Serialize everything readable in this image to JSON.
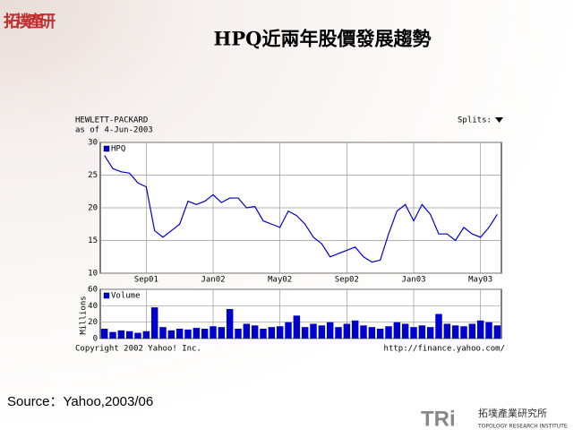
{
  "slide": {
    "title": "HPQ近兩年股價發展趨勢",
    "source": "Source：Yahoo,2003/06",
    "corner_logo": "拓墣產研",
    "brand": "TRi",
    "institute_cn": "拓墣產業研究所",
    "institute_en": "TOPOLOGY RESEARCH INSTITUTE"
  },
  "chart_data": [
    {
      "type": "line",
      "title": "HEWLETT-PACKARD",
      "subtitle": "as of  4-Jun-2003",
      "splits_label": "Splits:",
      "categories": [
        null,
        null,
        null,
        null,
        null,
        "Sep01",
        null,
        null,
        null,
        null,
        null,
        null,
        null,
        "Jan02",
        null,
        null,
        null,
        null,
        null,
        null,
        null,
        "May02",
        null,
        null,
        null,
        null,
        null,
        null,
        null,
        "Sep02",
        null,
        null,
        null,
        null,
        null,
        null,
        null,
        "Jan03",
        null,
        null,
        null,
        null,
        null,
        null,
        null,
        "May03",
        null,
        null
      ],
      "series": [
        {
          "name": "HPQ",
          "color": "#0000cc",
          "values": [
            28,
            26,
            25.5,
            25.3,
            23.8,
            23.2,
            16.5,
            15.5,
            16.5,
            17.5,
            21,
            20.5,
            21,
            22,
            20.8,
            21.5,
            21.5,
            20,
            20.2,
            18,
            17.5,
            17,
            19.5,
            18.8,
            17.5,
            15.5,
            14.5,
            12.5,
            13,
            13.5,
            14,
            12.5,
            11.7,
            12,
            16,
            19.5,
            20.5,
            18,
            20.5,
            19,
            16,
            16,
            15,
            17,
            16,
            15.5,
            17,
            19
          ]
        }
      ],
      "ylim": [
        10,
        30
      ],
      "yticks": [
        10,
        15,
        20,
        25,
        30
      ],
      "grid": true
    },
    {
      "type": "bar",
      "ylabel": "Millions",
      "footer_left": "Copyright 2002 Yahoo! Inc.",
      "footer_right": "http://finance.yahoo.com/",
      "series": [
        {
          "name": "Volume",
          "color": "#0000cc",
          "values": [
            12,
            8,
            10,
            9,
            7,
            9,
            38,
            14,
            10,
            12,
            11,
            13,
            12,
            15,
            14,
            36,
            12,
            18,
            16,
            12,
            14,
            15,
            20,
            28,
            14,
            18,
            16,
            20,
            14,
            18,
            22,
            16,
            14,
            12,
            15,
            20,
            18,
            14,
            16,
            14,
            30,
            18,
            16,
            15,
            18,
            22,
            20,
            16
          ]
        }
      ],
      "ylim": [
        0,
        60
      ],
      "yticks": [
        0,
        20,
        40,
        60
      ],
      "grid": true
    }
  ]
}
